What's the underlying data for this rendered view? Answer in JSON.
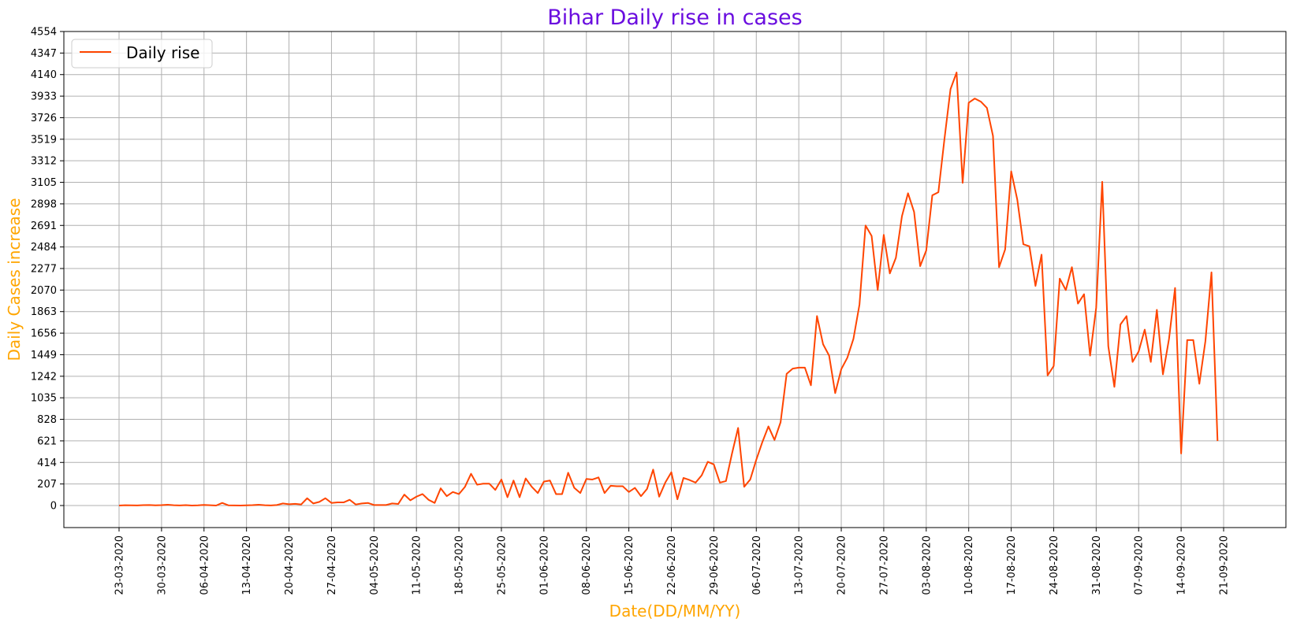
{
  "chart_data": {
    "type": "line",
    "title": "Bihar Daily rise in cases",
    "xlabel": "Date(DD/MM/YY)",
    "ylabel": "Daily Cases increase",
    "title_color": "#6a0ddf",
    "label_color": "#ffa500",
    "line_color": "#ff4500",
    "grid": true,
    "legend": {
      "placement": "top-left",
      "entries": [
        "Daily rise"
      ]
    },
    "ylim": [
      0,
      4554
    ],
    "y_ticks": [
      0,
      207,
      414,
      621,
      828,
      1035,
      1242,
      1449,
      1656,
      1863,
      2070,
      2277,
      2484,
      2691,
      2898,
      3105,
      3312,
      3519,
      3726,
      3933,
      4140,
      4347,
      4554
    ],
    "x_ticks": [
      "23-03-2020",
      "30-03-2020",
      "06-04-2020",
      "13-04-2020",
      "20-04-2020",
      "27-04-2020",
      "04-05-2020",
      "11-05-2020",
      "18-05-2020",
      "25-05-2020",
      "01-06-2020",
      "08-06-2020",
      "15-06-2020",
      "22-06-2020",
      "29-06-2020",
      "06-07-2020",
      "13-07-2020",
      "20-07-2020",
      "27-07-2020",
      "03-08-2020",
      "10-08-2020",
      "17-08-2020",
      "24-08-2020",
      "31-08-2020",
      "07-09-2020",
      "14-09-2020",
      "21-09-2020"
    ],
    "x_start": "23-03-2020",
    "series": [
      {
        "name": "Daily rise",
        "values": [
          0,
          3,
          2,
          1,
          4,
          5,
          2,
          4,
          8,
          3,
          1,
          4,
          0,
          2,
          6,
          3,
          0,
          25,
          2,
          1,
          0,
          2,
          4,
          8,
          3,
          1,
          5,
          20,
          12,
          16,
          10,
          70,
          20,
          35,
          70,
          25,
          30,
          30,
          55,
          10,
          20,
          25,
          5,
          5,
          5,
          20,
          15,
          105,
          50,
          85,
          110,
          55,
          25,
          165,
          90,
          130,
          110,
          180,
          305,
          200,
          210,
          210,
          150,
          250,
          80,
          240,
          80,
          260,
          180,
          120,
          230,
          240,
          110,
          110,
          315,
          170,
          120,
          255,
          250,
          270,
          120,
          190,
          185,
          185,
          130,
          170,
          90,
          160,
          345,
          85,
          220,
          320,
          60,
          265,
          245,
          220,
          290,
          420,
          395,
          220,
          235,
          500,
          745,
          180,
          250,
          440,
          610,
          760,
          630,
          800,
          1265,
          1315,
          1325,
          1325,
          1155,
          1820,
          1550,
          1440,
          1080,
          1310,
          1420,
          1600,
          1930,
          2690,
          2590,
          2070,
          2600,
          2230,
          2380,
          2780,
          3000,
          2820,
          2300,
          2450,
          2980,
          3010,
          3520,
          4000,
          4160,
          3100,
          3870,
          3910,
          3880,
          3820,
          3550,
          2290,
          2460,
          3210,
          2940,
          2510,
          2490,
          2110,
          2410,
          1250,
          1340,
          2180,
          2070,
          2290,
          1940,
          2030,
          1440,
          1900,
          3110,
          1530,
          1140,
          1740,
          1820,
          1380,
          1480,
          1690,
          1380,
          1880,
          1260,
          1600,
          2090,
          500,
          1590,
          1590,
          1170,
          1580,
          2240,
          620
        ]
      }
    ]
  }
}
